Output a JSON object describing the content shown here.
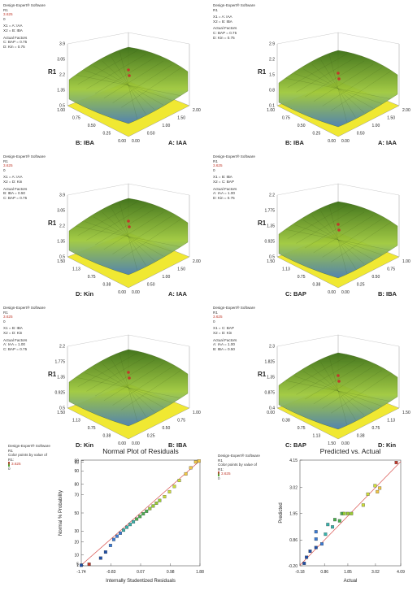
{
  "software_label": "Design-Expert® Software",
  "response_label": "R1",
  "design_points_color": "#c0392b",
  "surface_colors": {
    "top": "#3a6e12",
    "mid": "#9fc93c",
    "low": "#4b7fb8",
    "floor": "#f0e832"
  },
  "panels": [
    {
      "factors_text": [
        "X1 = A: IAA",
        "X2 = B: IBA"
      ],
      "actual_heading": "Actual Factors",
      "actual_text": [
        "C: BAP = 0.75",
        "D: Kin = 0.75"
      ],
      "range_hi": "3.625",
      "range_lo": "0",
      "zticks": [
        "3.9",
        "3.05",
        "2.2",
        "1.35",
        "0.5"
      ],
      "xaxis": "A: IAA",
      "yaxis": "B: IBA",
      "xticks": [
        "0.00",
        "0.50",
        "1.00",
        "1.50",
        "2.00"
      ],
      "yticks": [
        "1.00",
        "0.75",
        "0.50",
        "0.25",
        "0.00"
      ]
    },
    {
      "factors_text": [
        "X1 = A: IAA",
        "X2 = B: IBA"
      ],
      "actual_heading": "Actual Factors",
      "actual_text": [
        "C: BAP = 0.75",
        "D: Kin = 0.75"
      ],
      "range_hi": "",
      "range_lo": "",
      "zticks": [
        "2.9",
        "2.2",
        "1.5",
        "0.8",
        "0.1"
      ],
      "xaxis": "A: IAA",
      "yaxis": "B: IBA",
      "xticks": [
        "0.00",
        "0.50",
        "1.00",
        "1.50",
        "2.00"
      ],
      "yticks": [
        "1.00",
        "0.75",
        "0.50",
        "0.25",
        "0.00"
      ]
    },
    {
      "factors_text": [
        "X1 = A: IAA",
        "X2 = D: Kin"
      ],
      "actual_heading": "Actual Factors",
      "actual_text": [
        "B: IBA = 0.50",
        "C: BAP = 0.75"
      ],
      "range_hi": "3.625",
      "range_lo": "0",
      "zticks": [
        "3.9",
        "3.05",
        "2.2",
        "1.35",
        "0.5"
      ],
      "xaxis": "A: IAA",
      "yaxis": "D: Kin",
      "xticks": [
        "0.00",
        "0.50",
        "1.00",
        "1.50",
        "2.00"
      ],
      "yticks": [
        "1.50",
        "1.13",
        "0.75",
        "0.38",
        "0.00"
      ]
    },
    {
      "factors_text": [
        "X1 = B: IBA",
        "X2 = C: BAP"
      ],
      "actual_heading": "Actual Factors",
      "actual_text": [
        "A: IAA = 1.00",
        "D: Kin = 0.75"
      ],
      "range_hi": "3.625",
      "range_lo": "0",
      "zticks": [
        "2.2",
        "1.775",
        "1.35",
        "0.925",
        "0.5"
      ],
      "xaxis": "B: IBA",
      "yaxis": "C: BAP",
      "xticks": [
        "0.00",
        "0.25",
        "0.50",
        "0.75",
        "1.00"
      ],
      "yticks": [
        "1.50",
        "1.13",
        "0.75",
        "0.38",
        "0.00"
      ]
    },
    {
      "factors_text": [
        "X1 = B: IBA",
        "X2 = D: Kin"
      ],
      "actual_heading": "Actual Factors",
      "actual_text": [
        "A: IAA = 1.00",
        "C: BAP = 0.75"
      ],
      "range_hi": "3.625",
      "range_lo": "0",
      "zticks": [
        "2.2",
        "1.775",
        "1.35",
        "0.925",
        "0.5"
      ],
      "xaxis": "B: IBA",
      "yaxis": "D: Kin",
      "xticks": [
        "0.00",
        "0.25",
        "0.50",
        "0.75",
        "1.00"
      ],
      "yticks": [
        "1.50",
        "1.13",
        "0.75",
        "0.38",
        "0.00"
      ]
    },
    {
      "factors_text": [
        "X1 = C: BAP",
        "X2 = D: Kin"
      ],
      "actual_heading": "Actual Factors",
      "actual_text": [
        "A: IAA = 1.00",
        "B: IBA = 0.50"
      ],
      "range_hi": "3.625",
      "range_lo": "0",
      "zticks": [
        "2.3",
        "1.825",
        "1.35",
        "0.875",
        "0.4"
      ],
      "xaxis": "D: Kin",
      "yaxis": "C: BAP",
      "xticks": [
        "0.00",
        "0.38",
        "0.75",
        "1.13",
        "1.50"
      ],
      "yticks": [
        "0.00",
        "0.38",
        "0.75",
        "1.13",
        "1.50"
      ]
    }
  ],
  "normal_plot": {
    "title": "Normal Plot of Residuals",
    "xlabel": "Internally Studentized Residuals",
    "ylabel": "Normal % Probability",
    "legend": [
      "Color points by value of",
      "R1:"
    ],
    "range_hi": "3.625",
    "range_lo": "0"
  },
  "pva_plot": {
    "title": "Predicted vs. Actual",
    "xlabel": "Actual",
    "ylabel": "Predicted",
    "legend": [
      "Color points by value of",
      "R1:"
    ],
    "range_hi": "3.625",
    "range_lo": "0"
  },
  "chart_data": [
    {
      "type": "scatter",
      "title": "Normal Plot of Residuals",
      "xlabel": "Internally Studentized Residuals",
      "ylabel": "Normal % Probability",
      "x_ticks": [
        "-1.74",
        "-0.83",
        "0.07",
        "0.98",
        "1.88"
      ],
      "y_ticks": [
        "1",
        "5",
        "10",
        "20",
        "30",
        "50",
        "70",
        "80",
        "90",
        "95",
        "99"
      ],
      "xlim": [
        -1.74,
        1.88
      ],
      "points": [
        {
          "x": -1.74,
          "p": 1
        },
        {
          "x": -1.5,
          "p": 3
        },
        {
          "x": -1.15,
          "p": 8
        },
        {
          "x": -1.0,
          "p": 12
        },
        {
          "x": -0.85,
          "p": 17
        },
        {
          "x": -0.75,
          "p": 22
        },
        {
          "x": -0.65,
          "p": 25
        },
        {
          "x": -0.55,
          "p": 28
        },
        {
          "x": -0.45,
          "p": 31
        },
        {
          "x": -0.35,
          "p": 34
        },
        {
          "x": -0.25,
          "p": 37
        },
        {
          "x": -0.15,
          "p": 40
        },
        {
          "x": -0.05,
          "p": 43
        },
        {
          "x": 0.05,
          "p": 46
        },
        {
          "x": 0.15,
          "p": 49
        },
        {
          "x": 0.25,
          "p": 52
        },
        {
          "x": 0.35,
          "p": 55
        },
        {
          "x": 0.45,
          "p": 58
        },
        {
          "x": 0.55,
          "p": 61
        },
        {
          "x": 0.65,
          "p": 64
        },
        {
          "x": 0.8,
          "p": 68
        },
        {
          "x": 0.95,
          "p": 73
        },
        {
          "x": 1.1,
          "p": 78
        },
        {
          "x": 1.25,
          "p": 83
        },
        {
          "x": 1.45,
          "p": 88
        },
        {
          "x": 1.6,
          "p": 92
        },
        {
          "x": 1.75,
          "p": 96
        },
        {
          "x": 1.85,
          "p": 98.5
        }
      ]
    },
    {
      "type": "scatter",
      "title": "Predicted vs. Actual",
      "xlabel": "Actual",
      "ylabel": "Predicted",
      "x_ticks": [
        "-0.18",
        "0.86",
        "1.85",
        "3.02",
        "4.09"
      ],
      "y_ticks": [
        "-0.20",
        "0.86",
        "1.95",
        "3.02",
        "4.15"
      ],
      "xlim": [
        -0.18,
        4.09
      ],
      "ylim": [
        -0.2,
        4.15
      ],
      "points": [
        {
          "x": 0.0,
          "y": -0.1
        },
        {
          "x": 0.1,
          "y": 0.15
        },
        {
          "x": 0.25,
          "y": 0.4
        },
        {
          "x": 0.5,
          "y": 0.55
        },
        {
          "x": 0.5,
          "y": 0.9
        },
        {
          "x": 0.5,
          "y": 1.2
        },
        {
          "x": 0.75,
          "y": 0.7
        },
        {
          "x": 0.9,
          "y": 1.1
        },
        {
          "x": 1.0,
          "y": 1.5
        },
        {
          "x": 1.2,
          "y": 1.4
        },
        {
          "x": 1.3,
          "y": 1.7
        },
        {
          "x": 1.5,
          "y": 1.65
        },
        {
          "x": 1.6,
          "y": 1.95
        },
        {
          "x": 1.7,
          "y": 1.95
        },
        {
          "x": 1.85,
          "y": 1.95
        },
        {
          "x": 2.0,
          "y": 1.95
        },
        {
          "x": 2.5,
          "y": 2.3
        },
        {
          "x": 2.7,
          "y": 2.75
        },
        {
          "x": 3.0,
          "y": 3.1
        },
        {
          "x": 3.1,
          "y": 2.85
        },
        {
          "x": 3.2,
          "y": 3.0
        },
        {
          "x": 3.9,
          "y": 4.05
        }
      ]
    }
  ]
}
